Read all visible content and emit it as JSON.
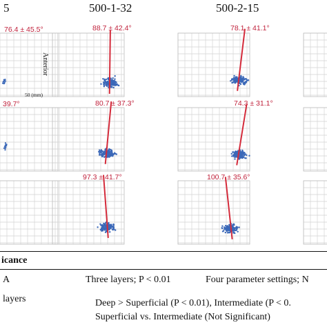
{
  "columns": [
    {
      "title": "5"
    },
    {
      "title": "500-1-32"
    },
    {
      "title": "500-2-15"
    }
  ],
  "axis": {
    "anterior_label": "Anterior",
    "scale_label": "50 (mm)"
  },
  "panels": [
    {
      "row": 0,
      "col": 0,
      "angle": 76.4,
      "sd": 45.5,
      "label": "76.4 ± 45.5°"
    },
    {
      "row": 0,
      "col": 1,
      "angle": 88.7,
      "sd": 42.4,
      "label": "88.7 ± 42.4°"
    },
    {
      "row": 0,
      "col": 2,
      "angle": 78.1,
      "sd": 41.1,
      "label": "78.1 ± 41.1°"
    },
    {
      "row": 1,
      "col": 0,
      "angle": null,
      "sd": 39.7,
      "label": "39.7°"
    },
    {
      "row": 1,
      "col": 1,
      "angle": 80.7,
      "sd": 37.3,
      "label": "80.7 ± 37.3°"
    },
    {
      "row": 1,
      "col": 2,
      "angle": 74.3,
      "sd": 31.1,
      "label": "74.3 ± 31.1°"
    },
    {
      "row": 2,
      "col": 0,
      "angle": null,
      "sd": null,
      "label": ""
    },
    {
      "row": 2,
      "col": 1,
      "angle": 97.3,
      "sd": 41.7,
      "label": "97.3 ± 41.7°"
    },
    {
      "row": 2,
      "col": 2,
      "angle": 100.7,
      "sd": 35.6,
      "label": "100.7 ± 35.6°"
    }
  ],
  "table": {
    "header": "icance",
    "row1": {
      "left": "A",
      "c1": "Three layers; P < 0.01",
      "c2": "Four parameter settings; N"
    },
    "row2": {
      "left": "layers",
      "c1": "Deep > Superficial (P < 0.01), Intermediate (P < 0."
    },
    "row3": {
      "c1": "Superficial vs. Intermediate (Not Significant)"
    }
  },
  "colors": {
    "vector": "#d42a3a",
    "points": "#3b68b8",
    "annotation": "#c0213b",
    "grid": "#d3d3d3"
  }
}
